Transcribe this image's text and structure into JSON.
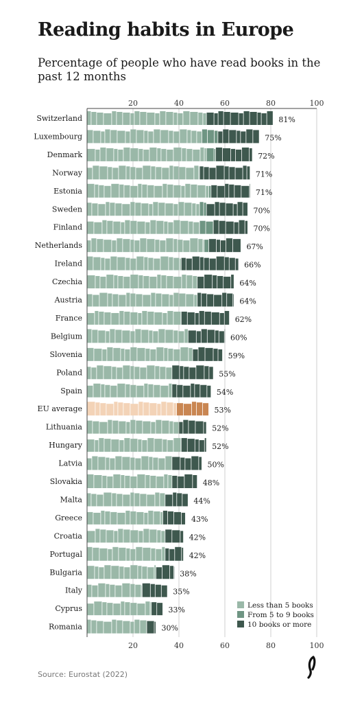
{
  "title": "Reading habits in Europe",
  "subtitle": "Percentage of people who have read books in the past 12 months",
  "source": "Source: Eurostat (2022)",
  "colors": {
    "less_than_5": "#9ab8a8",
    "from_5_to_9": "#6f9583",
    "ten_or_more": "#3e584e",
    "eu_less_than_5": "#f3d3b7",
    "eu_from_5_to_9": "#e7b58c",
    "eu_ten_or_more": "#c98652",
    "axis": "#444444",
    "grid": "#cfcfcf"
  },
  "chart_data": {
    "type": "bar",
    "orientation": "horizontal",
    "stacked": true,
    "xlim": [
      0,
      100
    ],
    "xticks": [
      20,
      40,
      60,
      80,
      100
    ],
    "grid": true,
    "legend_position": "bottom-right",
    "categories": [
      "Switzerland",
      "Luxembourg",
      "Denmark",
      "Norway",
      "Estonia",
      "Sweden",
      "Finland",
      "Netherlands",
      "Ireland",
      "Czechia",
      "Austria",
      "France",
      "Belgium",
      "Slovenia",
      "Poland",
      "Spain",
      "EU average",
      "Lithuania",
      "Hungary",
      "Latvia",
      "Slovakia",
      "Malta",
      "Greece",
      "Croatia",
      "Portugal",
      "Bulgaria",
      "Italy",
      "Cyprus",
      "Romania"
    ],
    "totals": [
      81,
      75,
      72,
      71,
      71,
      70,
      70,
      67,
      66,
      64,
      64,
      62,
      60,
      59,
      55,
      54,
      53,
      52,
      52,
      50,
      48,
      44,
      43,
      42,
      42,
      38,
      35,
      33,
      30
    ],
    "total_labels": [
      "81%",
      "75%",
      "72%",
      "71%",
      "71%",
      "70%",
      "70%",
      "67%",
      "66%",
      "64%",
      "64%",
      "62%",
      "60%",
      "59%",
      "55%",
      "54%",
      "53%",
      "52%",
      "52%",
      "50%",
      "48%",
      "44%",
      "43%",
      "42%",
      "42%",
      "38%",
      "35%",
      "33%",
      "30%"
    ],
    "highlight": "EU average",
    "series": [
      {
        "name": "Less than 5 books",
        "values": [
          52,
          50,
          52,
          49,
          53,
          49,
          49,
          51,
          41,
          48,
          48,
          41,
          44,
          46,
          37,
          37,
          39,
          40,
          41,
          37,
          37,
          34,
          33,
          34,
          34,
          30,
          24,
          28,
          26
        ]
      },
      {
        "name": "From 5 to 9 books",
        "values": [
          0,
          7,
          4,
          0,
          1,
          3,
          6,
          2,
          0,
          0,
          0,
          0,
          0,
          0,
          0,
          0,
          0,
          0,
          0,
          0,
          0,
          0,
          0,
          0,
          0,
          0,
          0,
          0,
          0
        ]
      },
      {
        "name": "10 books or more",
        "values": [
          29,
          18,
          16,
          22,
          17,
          18,
          15,
          14,
          25,
          16,
          16,
          21,
          16,
          13,
          18,
          17,
          14,
          12,
          11,
          13,
          11,
          10,
          10,
          8,
          8,
          8,
          11,
          5,
          4
        ]
      }
    ]
  }
}
